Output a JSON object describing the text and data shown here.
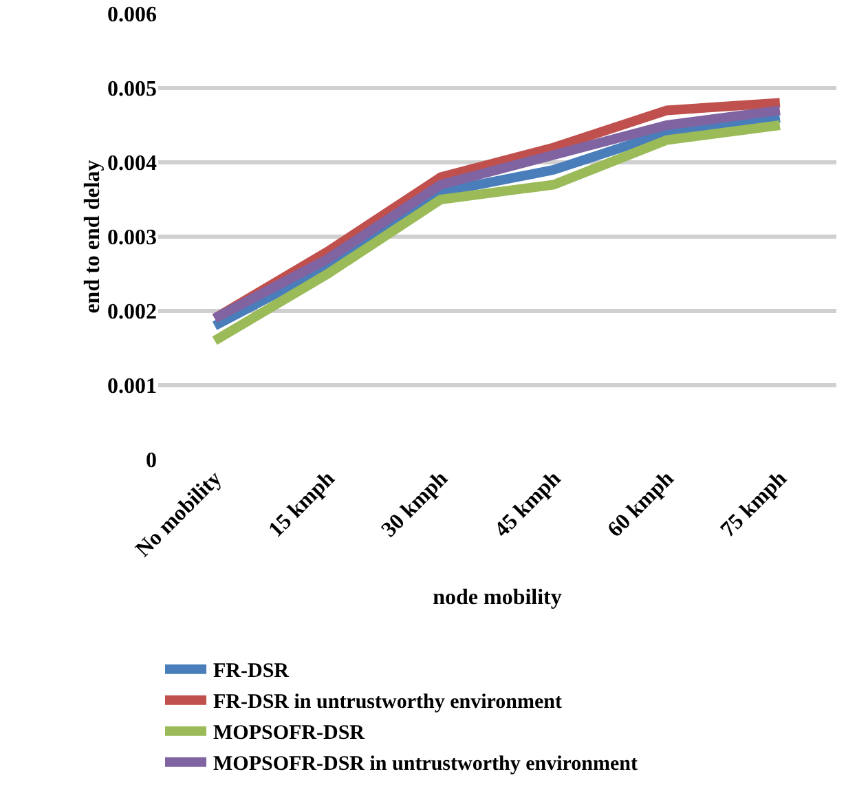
{
  "chart_data": {
    "type": "line",
    "xlabel": "node mobility",
    "ylabel": "end to end delay",
    "categories": [
      "No mobility",
      "15 kmph",
      "30 kmph",
      "45 kmph",
      "60 kmph",
      "75 kmph"
    ],
    "series": [
      {
        "name": "FR-DSR",
        "color": "#4a7ebb",
        "values": [
          0.0018,
          0.0026,
          0.0036,
          0.0039,
          0.0044,
          0.0046
        ]
      },
      {
        "name": "FR-DSR in untrustworthy environment",
        "color": "#c0504d",
        "values": [
          0.0019,
          0.0028,
          0.0038,
          0.0042,
          0.0047,
          0.0048
        ]
      },
      {
        "name": "MOPSOFR-DSR",
        "color": "#9bbb59",
        "values": [
          0.0016,
          0.0025,
          0.0035,
          0.0037,
          0.0043,
          0.0045
        ]
      },
      {
        "name": "MOPSOFR-DSR in untrustworthy environment",
        "color": "#8064a2",
        "values": [
          0.0019,
          0.0027,
          0.0037,
          0.0041,
          0.0045,
          0.0047
        ]
      }
    ],
    "ylim": [
      0,
      0.006
    ],
    "yticks": [
      0,
      0.001,
      0.002,
      0.003,
      0.004,
      0.005,
      0.006
    ],
    "grid": "y",
    "legend": "bottom",
    "marker": "none",
    "line_style": "solid"
  }
}
